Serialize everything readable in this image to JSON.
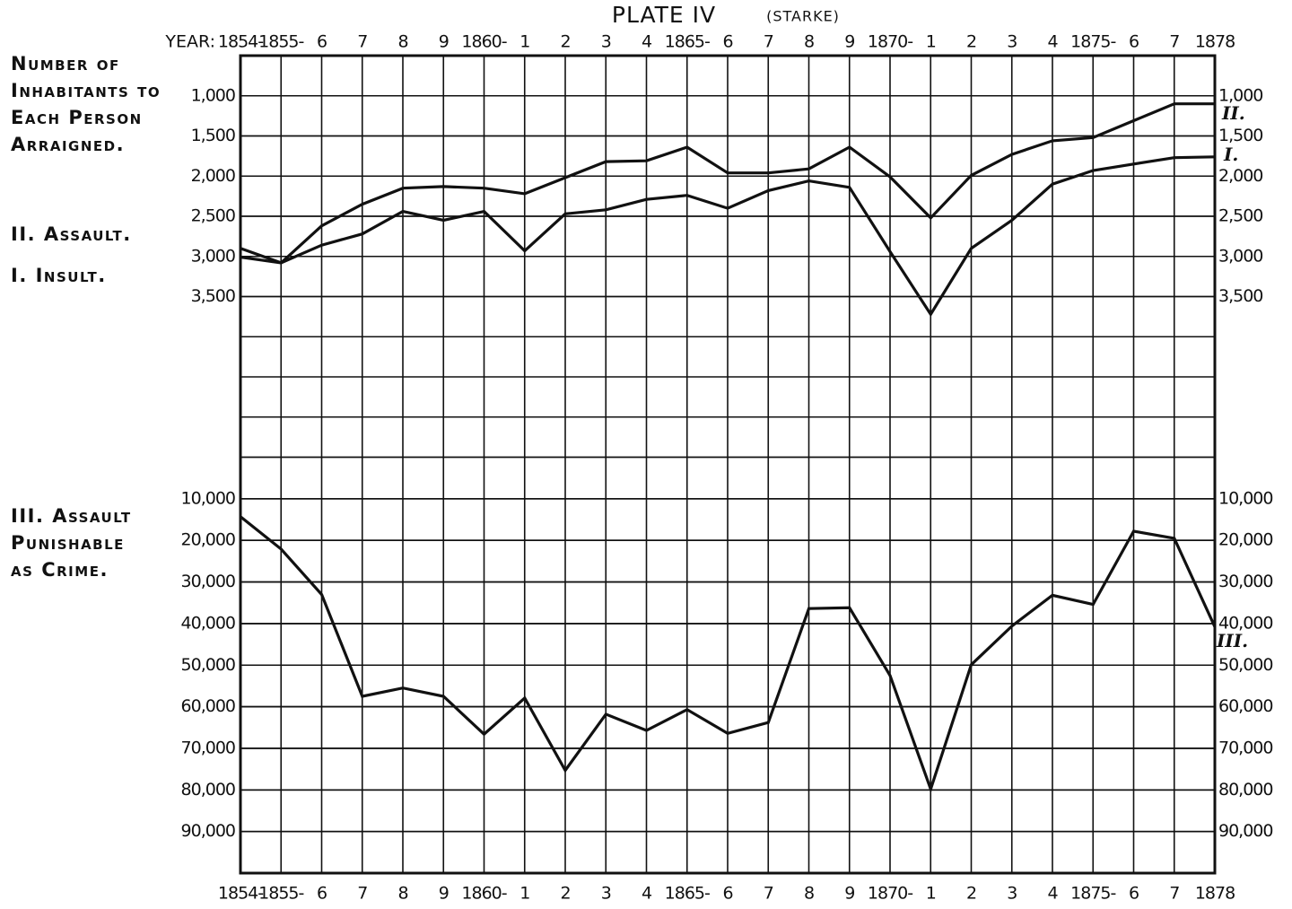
{
  "chart_data": {
    "type": "line",
    "title": "PLATE IV",
    "subtitle": "(STARKE)",
    "x_label": "YEAR:",
    "y_label": "Number of Inhabitants to Each Person Arraigned.",
    "categories": [
      "1854-",
      "1855-",
      "6",
      "7",
      "8",
      "9",
      "1860-",
      "1",
      "2",
      "3",
      "4",
      "1865-",
      "6",
      "7",
      "8",
      "9",
      "1870-",
      "1",
      "2",
      "3",
      "4",
      "1875-",
      "6",
      "7",
      "1878"
    ],
    "ylim": [
      500,
      5500
    ],
    "yticks": [
      {
        "value": 1000,
        "label": "1,000"
      },
      {
        "value": 1500,
        "label": "1,500"
      },
      {
        "value": 2000,
        "label": "2,000"
      },
      {
        "value": 2500,
        "label": "2,500"
      },
      {
        "value": 3000,
        "label": "3,000"
      },
      {
        "value": 3500,
        "label": "3,500"
      }
    ],
    "y2lim": [
      0,
      100000
    ],
    "y2ticks": [
      {
        "value": 10000,
        "label": "10,000"
      },
      {
        "value": 20000,
        "label": "20,000"
      },
      {
        "value": 30000,
        "label": "30,000"
      },
      {
        "value": 40000,
        "label": "40,000"
      },
      {
        "value": 50000,
        "label": "50,000"
      },
      {
        "value": 60000,
        "label": "60,000"
      },
      {
        "value": 70000,
        "label": "70,000"
      },
      {
        "value": 80000,
        "label": "80,000"
      },
      {
        "value": 90000,
        "label": "90,000"
      }
    ],
    "inverted": true,
    "grid": true,
    "series": [
      {
        "name": "II. Assault.",
        "tag": "II.",
        "color": "#111111",
        "values": [
          3010,
          3080,
          2620,
          2350,
          2150,
          2130,
          2150,
          2220,
          2020,
          1820,
          1810,
          1640,
          1960,
          1960,
          1910,
          1640,
          2010,
          2520,
          1990,
          1730,
          1560,
          1520,
          1310,
          1100,
          1100
        ]
      },
      {
        "name": "I. Insult.",
        "tag": "I.",
        "color": "#111111",
        "values": [
          2900,
          3080,
          2860,
          2720,
          2440,
          2550,
          2440,
          2930,
          2470,
          2420,
          2290,
          2240,
          2400,
          2180,
          2060,
          2140,
          2940,
          3720,
          2900,
          2550,
          2100,
          1930,
          1850,
          1770,
          1760
        ]
      },
      {
        "name": "III. Assault Punishable as Crime.",
        "tag": "III.",
        "color": "#111111",
        "axis": "y2",
        "values": [
          14300,
          22100,
          33000,
          57500,
          55500,
          57500,
          66600,
          57900,
          75300,
          61800,
          65700,
          60700,
          66400,
          63800,
          36400,
          36200,
          52500,
          79800,
          49900,
          40600,
          33200,
          35400,
          17800,
          19500,
          40800
        ]
      }
    ]
  }
}
